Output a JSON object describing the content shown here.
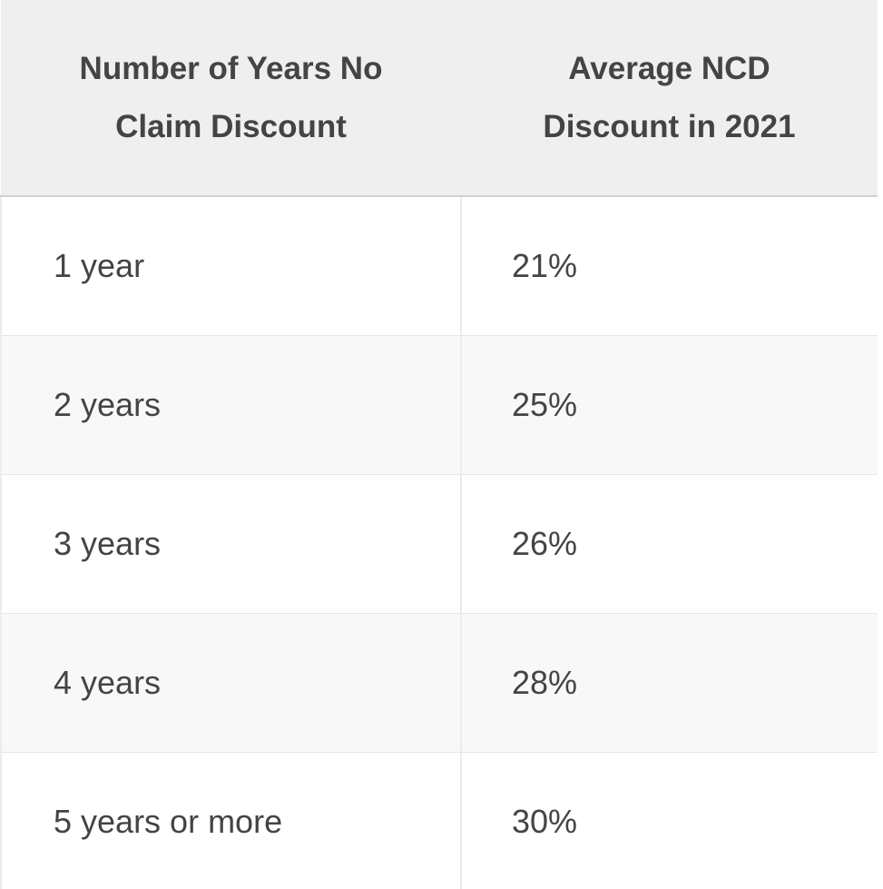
{
  "table": {
    "headers": [
      "Number of Years No Claim Discount",
      "Average NCD Discount in 2021"
    ],
    "rows": [
      [
        "1 year",
        "21%"
      ],
      [
        "2 years",
        "25%"
      ],
      [
        "3 years",
        "26%"
      ],
      [
        "4 years",
        "28%"
      ],
      [
        "5 years or more",
        "30%"
      ]
    ]
  }
}
